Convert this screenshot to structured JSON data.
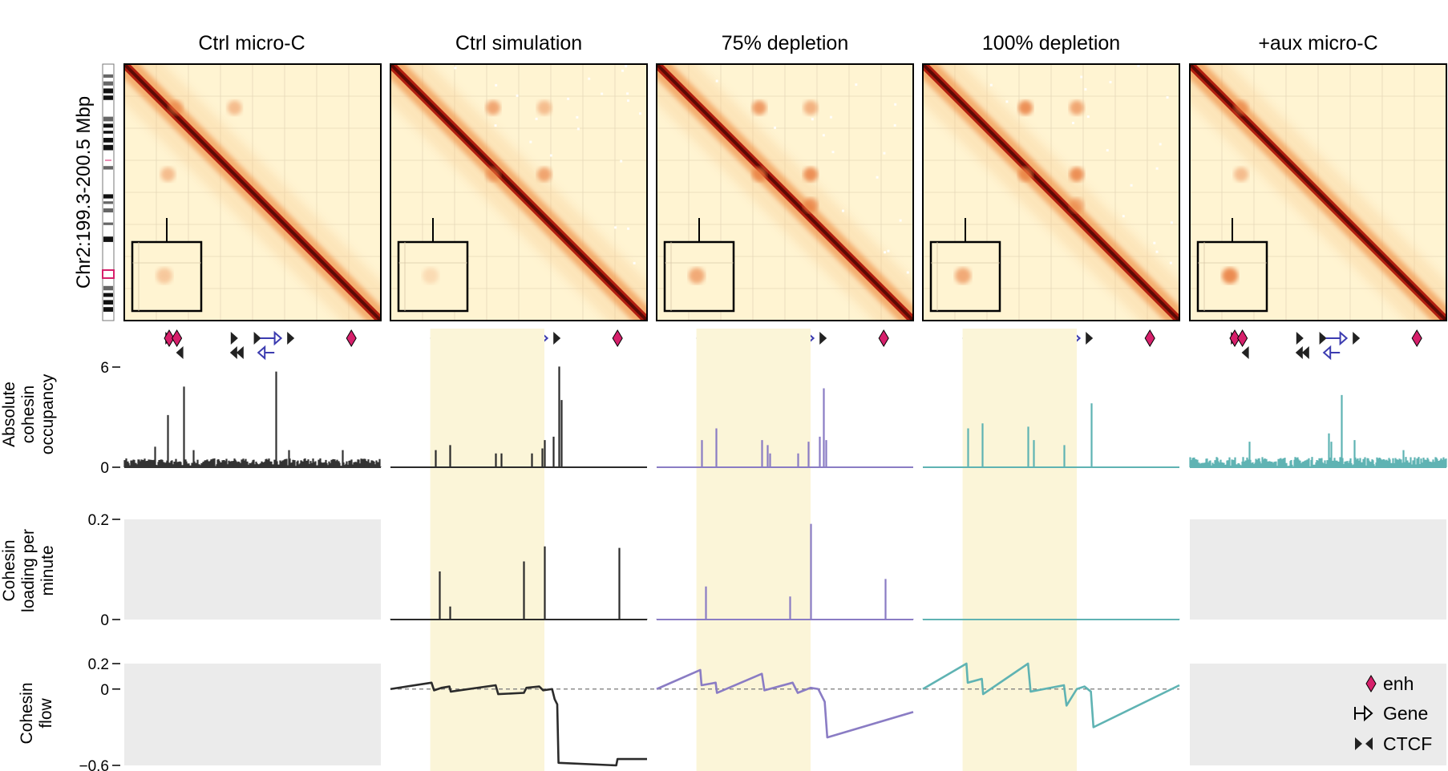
{
  "figure": {
    "columns": [
      {
        "key": "ctrl_microc",
        "title": "Ctrl micro-C",
        "title_color": "#000000",
        "trace_color": "#333333",
        "shaded": false,
        "loading_na": true,
        "flow_na": true
      },
      {
        "key": "ctrl_sim",
        "title": "Ctrl simulation",
        "title_color": "#000000",
        "trace_color": "#2b2b2b",
        "shaded": true,
        "loading_na": false,
        "flow_na": false
      },
      {
        "key": "dep75",
        "title": "75% depletion",
        "title_color": "#8a7cc4",
        "trace_color": "#8a7cc4",
        "shaded": true,
        "loading_na": false,
        "flow_na": false
      },
      {
        "key": "dep100",
        "title": "100% depletion",
        "title_color": "#5fb3b3",
        "trace_color": "#5fb3b3",
        "shaded": true,
        "loading_na": false,
        "flow_na": false
      },
      {
        "key": "aux_microc",
        "title": "+aux micro-C",
        "title_color": "#5fb3b3",
        "trace_color": "#5fb3b3",
        "shaded": false,
        "loading_na": true,
        "flow_na": true
      }
    ],
    "region_label": "Chr2:199.3-200.5 Mbp",
    "colors": {
      "enhancer": "#d6206b",
      "gene": "#3b3bb0",
      "ctcf": "#222222",
      "shade": "#fbf5d8",
      "na_panel": "#ebebeb"
    }
  },
  "legend": {
    "enhancer": "enh",
    "gene": "Gene",
    "ctcf": "CTCF"
  },
  "chart_data": [
    {
      "type": "bar",
      "title": "Absolute cohesin occupancy",
      "ylabel": "Absolute cohesin occupancy",
      "ylim": [
        0,
        6
      ],
      "yticks": [
        "6",
        "0"
      ],
      "series": [
        {
          "name": "Ctrl micro-C",
          "peaks": [
            [
              0.17,
              3.1
            ],
            [
              0.23,
              4.8
            ],
            [
              0.59,
              5.7
            ],
            [
              0.12,
              1.2
            ],
            [
              0.27,
              1.0
            ],
            [
              0.64,
              1.0
            ],
            [
              0.85,
              1.0
            ]
          ],
          "noise": 0.5
        },
        {
          "name": "Ctrl simulation",
          "peaks": [
            [
              0.175,
              1.0
            ],
            [
              0.23,
              1.3
            ],
            [
              0.41,
              0.8
            ],
            [
              0.43,
              0.8
            ],
            [
              0.55,
              0.8
            ],
            [
              0.59,
              1.1
            ],
            [
              0.6,
              1.6
            ],
            [
              0.635,
              1.8
            ],
            [
              0.655,
              6.0
            ],
            [
              0.665,
              4.0
            ]
          ],
          "noise": 0.0
        },
        {
          "name": "75% depletion",
          "peaks": [
            [
              0.175,
              1.6
            ],
            [
              0.23,
              2.3
            ],
            [
              0.41,
              1.6
            ],
            [
              0.43,
              1.3
            ],
            [
              0.44,
              0.8
            ],
            [
              0.55,
              0.8
            ],
            [
              0.59,
              1.5
            ],
            [
              0.635,
              1.8
            ],
            [
              0.65,
              4.7
            ],
            [
              0.66,
              1.6
            ]
          ],
          "noise": 0.0
        },
        {
          "name": "100% depletion",
          "peaks": [
            [
              0.175,
              2.3
            ],
            [
              0.23,
              2.6
            ],
            [
              0.41,
              2.4
            ],
            [
              0.43,
              1.6
            ],
            [
              0.55,
              1.3
            ],
            [
              0.655,
              3.8
            ]
          ],
          "noise": 0.0
        },
        {
          "name": "+aux micro-C",
          "peaks": [
            [
              0.23,
              1.5
            ],
            [
              0.54,
              2.0
            ],
            [
              0.59,
              4.3
            ],
            [
              0.55,
              1.5
            ],
            [
              0.64,
              1.6
            ],
            [
              0.83,
              1.0
            ]
          ],
          "noise": 0.6
        }
      ]
    },
    {
      "type": "bar",
      "title": "Cohesin loading per minute",
      "ylabel": "Cohesin loading per minute",
      "ylim": [
        0,
        0.2
      ],
      "yticks": [
        "0.2",
        "0"
      ],
      "series": [
        {
          "name": "Ctrl simulation",
          "peaks": [
            [
              0.19,
              0.095
            ],
            [
              0.23,
              0.025
            ],
            [
              0.52,
              0.115
            ],
            [
              0.6,
              0.145
            ],
            [
              0.89,
              0.142
            ]
          ],
          "noise": 0.005
        },
        {
          "name": "75% depletion",
          "peaks": [
            [
              0.19,
              0.065
            ],
            [
              0.52,
              0.045
            ],
            [
              0.6,
              0.19
            ],
            [
              0.89,
              0.08
            ]
          ],
          "noise": 0.005
        },
        {
          "name": "100% depletion",
          "peaks": [],
          "noise": 0.012
        }
      ]
    },
    {
      "type": "line",
      "title": "Cohesin flow",
      "ylabel": "Cohesin flow",
      "ylim": [
        -0.6,
        0.2
      ],
      "yticks": [
        "0.2",
        "0",
        "−0.6"
      ],
      "series": [
        {
          "name": "Ctrl simulation",
          "points": [
            [
              0,
              0.0
            ],
            [
              0.16,
              0.05
            ],
            [
              0.17,
              -0.01
            ],
            [
              0.2,
              0.01
            ],
            [
              0.23,
              0.02
            ],
            [
              0.235,
              -0.02
            ],
            [
              0.41,
              0.03
            ],
            [
              0.42,
              -0.04
            ],
            [
              0.52,
              -0.03
            ],
            [
              0.53,
              0.01
            ],
            [
              0.58,
              0.02
            ],
            [
              0.595,
              -0.01
            ],
            [
              0.63,
              0.0
            ],
            [
              0.64,
              -0.08
            ],
            [
              0.65,
              -0.12
            ],
            [
              0.655,
              -0.58
            ],
            [
              0.88,
              -0.6
            ],
            [
              0.885,
              -0.55
            ],
            [
              1.0,
              -0.55
            ]
          ]
        },
        {
          "name": "75% depletion",
          "points": [
            [
              0,
              0.0
            ],
            [
              0.17,
              0.15
            ],
            [
              0.175,
              0.03
            ],
            [
              0.23,
              0.05
            ],
            [
              0.235,
              -0.03
            ],
            [
              0.41,
              0.12
            ],
            [
              0.42,
              -0.01
            ],
            [
              0.53,
              0.05
            ],
            [
              0.55,
              -0.03
            ],
            [
              0.6,
              0.01
            ],
            [
              0.63,
              0.0
            ],
            [
              0.655,
              -0.1
            ],
            [
              0.665,
              -0.38
            ],
            [
              1.0,
              -0.18
            ]
          ]
        },
        {
          "name": "100% depletion",
          "points": [
            [
              0,
              0.0
            ],
            [
              0.17,
              0.2
            ],
            [
              0.175,
              0.05
            ],
            [
              0.23,
              0.08
            ],
            [
              0.235,
              -0.04
            ],
            [
              0.41,
              0.2
            ],
            [
              0.42,
              -0.02
            ],
            [
              0.55,
              0.03
            ],
            [
              0.56,
              -0.13
            ],
            [
              0.6,
              0.0
            ],
            [
              0.63,
              0.02
            ],
            [
              0.655,
              -0.02
            ],
            [
              0.665,
              -0.3
            ],
            [
              1.0,
              0.03
            ]
          ]
        }
      ]
    }
  ],
  "heatmaps": [
    {
      "inset_dot": 0.35,
      "dots": [
        [
          0.17,
          0.2,
          0.6
        ],
        [
          0.43,
          0.17,
          0.5
        ],
        [
          0.17,
          0.43,
          0.5
        ]
      ]
    },
    {
      "inset_dot": 0.2,
      "dots": [
        [
          0.17,
          0.4,
          0.7
        ],
        [
          0.43,
          0.4,
          0.6
        ],
        [
          0.43,
          0.6,
          0.7
        ],
        [
          0.17,
          0.6,
          0.5
        ]
      ]
    },
    {
      "inset_dot": 0.6,
      "dots": [
        [
          0.17,
          0.4,
          0.8
        ],
        [
          0.43,
          0.4,
          0.8
        ],
        [
          0.43,
          0.6,
          0.9
        ],
        [
          0.17,
          0.6,
          0.6
        ],
        [
          0.55,
          0.6,
          0.8
        ]
      ]
    },
    {
      "inset_dot": 0.6,
      "dots": [
        [
          0.17,
          0.4,
          0.9
        ],
        [
          0.43,
          0.4,
          0.8
        ],
        [
          0.43,
          0.6,
          0.9
        ],
        [
          0.17,
          0.6,
          0.7
        ],
        [
          0.55,
          0.6,
          0.6
        ]
      ]
    },
    {
      "inset_dot": 0.85,
      "dots": [
        [
          0.17,
          0.2,
          0.6
        ],
        [
          0.43,
          0.2,
          0.5
        ]
      ]
    }
  ]
}
